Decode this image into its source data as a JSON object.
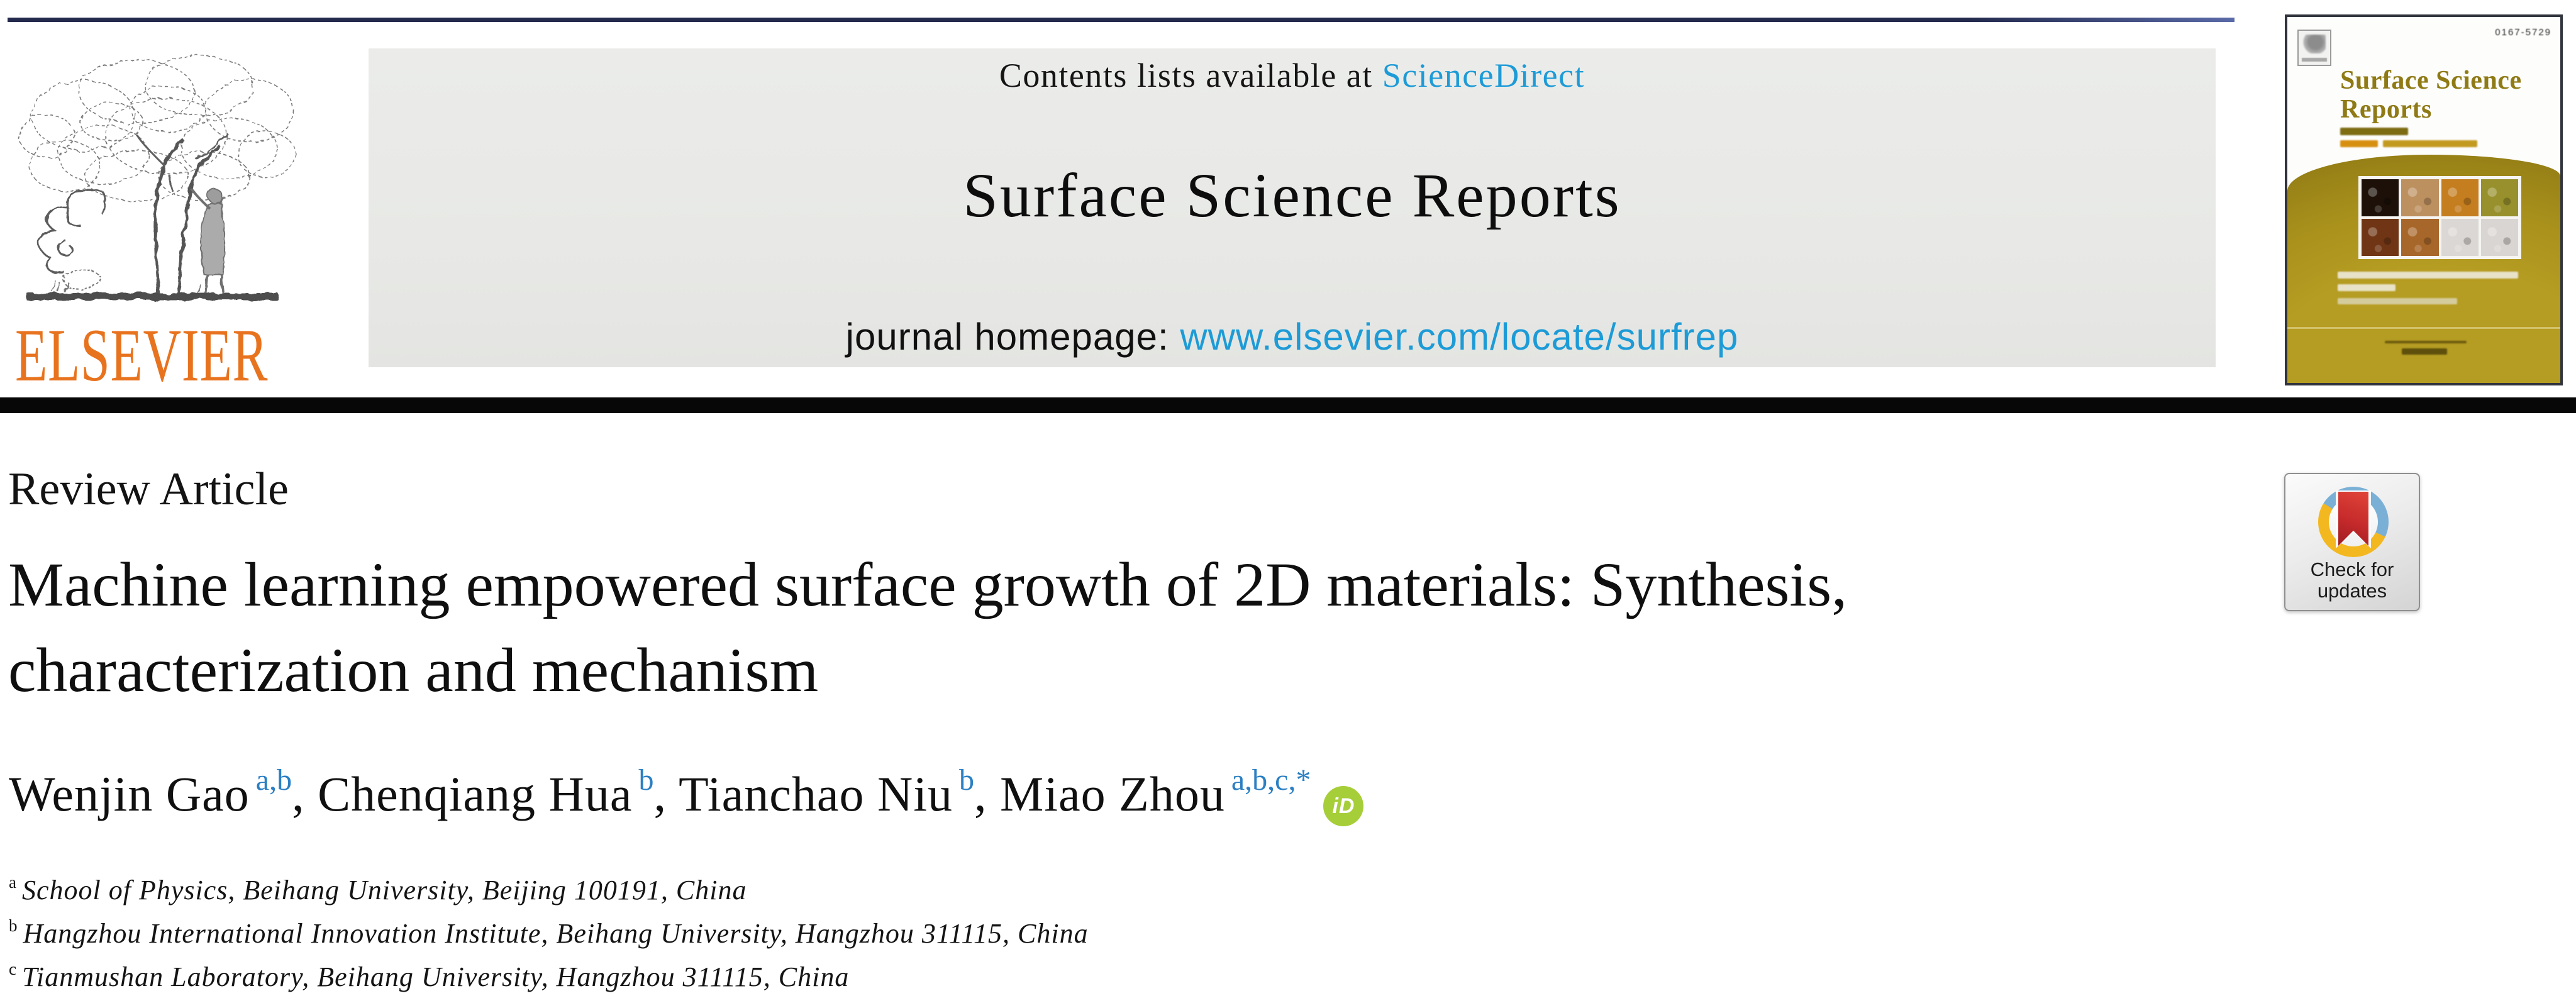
{
  "colors": {
    "link_blue": "#1d9bd7",
    "sup_blue": "#2b7fc3",
    "elsevier_orange": "#e8731e",
    "topline_navy": "#232a4d",
    "cover_gold": "#a8901c",
    "cover_title_gold": "#8f7a15",
    "crossmark_red": "#c62a2b",
    "crossmark_blue": "#7bb0d6",
    "crossmark_yellow": "#f3b820",
    "orcid_green": "#a6ce39"
  },
  "masthead": {
    "contents_prefix": "Contents lists available at ",
    "contents_link": "ScienceDirect",
    "journal_title": "Surface Science Reports",
    "homepage_prefix": "journal homepage: ",
    "homepage_link": "www.elsevier.com/locate/surfrep",
    "publisher_wordmark": "ELSEVIER"
  },
  "cover": {
    "issn_text": "0167-5729",
    "title_line1": "Surface Science",
    "title_line2": "Reports",
    "grid_colors": [
      "#1c1008",
      "#bd9060",
      "#c47d1f",
      "#97902c",
      "#6f3514",
      "#a8672a",
      "#dbd7d4",
      "#d9d5d2"
    ]
  },
  "article": {
    "type_label": "Review Article",
    "title_line1": "Machine learning empowered surface growth of 2D materials: Synthesis,",
    "title_line2": "characterization and mechanism",
    "authors": [
      {
        "name": "Wenjin Gao",
        "sup": "a,b",
        "sep": ", "
      },
      {
        "name": "Chenqiang Hua",
        "sup": "b",
        "sep": ", "
      },
      {
        "name": "Tianchao Niu",
        "sup": "b",
        "sep": ", "
      },
      {
        "name": "Miao Zhou",
        "sup": "a,b,c,*",
        "sep": ""
      }
    ],
    "affiliations": [
      {
        "sup": "a",
        "text": "School of Physics, Beihang University, Beijing 100191, China"
      },
      {
        "sup": "b",
        "text": "Hangzhou International Innovation Institute, Beihang University, Hangzhou 311115, China"
      },
      {
        "sup": "c",
        "text": "Tianmushan Laboratory, Beihang University, Hangzhou 311115, China"
      }
    ]
  },
  "crossmark": {
    "line1": "Check for",
    "line2": "updates"
  },
  "orcid_label": "iD"
}
